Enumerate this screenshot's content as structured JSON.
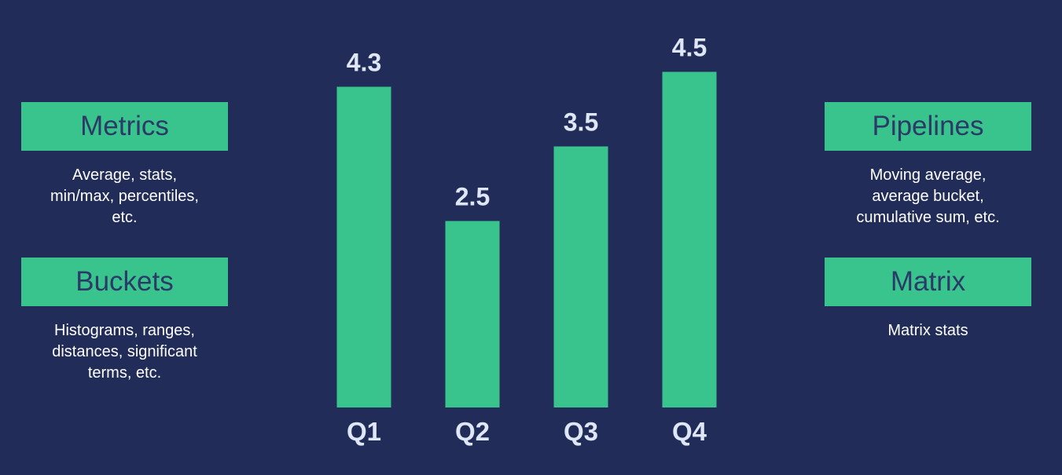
{
  "cards": [
    {
      "title": "Metrics",
      "desc": "Average, stats,\nmin/max, percentiles,\netc."
    },
    {
      "title": "Buckets",
      "desc": "Histograms, ranges,\ndistances, significant\nterms, etc."
    },
    {
      "title": "Pipelines",
      "desc": "Moving average,\naverage bucket,\ncumulative sum, etc."
    },
    {
      "title": "Matrix",
      "desc": "Matrix stats"
    }
  ],
  "colors": {
    "background": "#212d58",
    "bar": "#38c48c",
    "label": "#dfe6f5"
  },
  "chart_data": {
    "type": "bar",
    "categories": [
      "Q1",
      "Q2",
      "Q3",
      "Q4"
    ],
    "values": [
      4.3,
      2.5,
      3.5,
      4.5
    ],
    "value_labels": [
      "4.3",
      "2.5",
      "3.5",
      "4.5"
    ],
    "grid": false
  }
}
